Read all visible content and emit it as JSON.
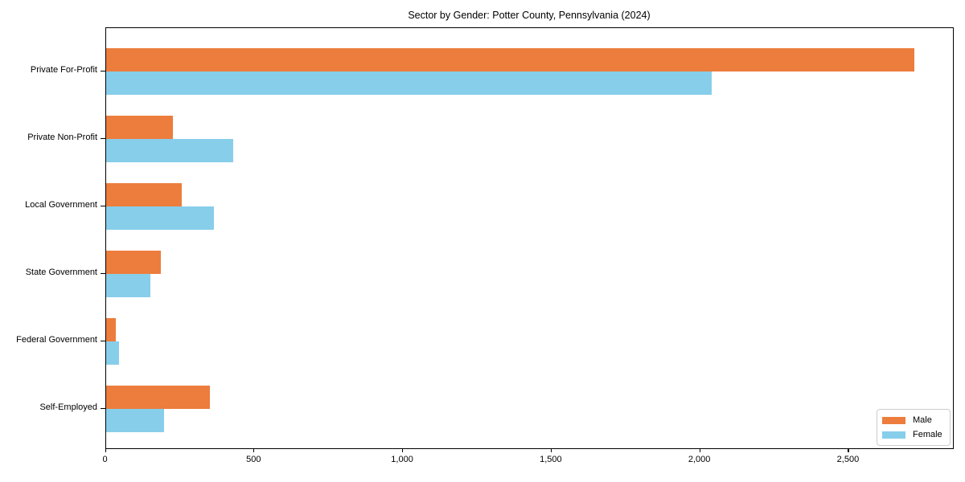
{
  "title": "Sector by Gender: Potter County, Pennsylvania (2024)",
  "legend": {
    "items": [
      {
        "label": "Male",
        "color": "#EC7D3C"
      },
      {
        "label": "Female",
        "color": "#87CEEB"
      }
    ]
  },
  "chart_data": {
    "type": "bar",
    "orientation": "horizontal",
    "title": "Sector by Gender: Potter County, Pennsylvania (2024)",
    "xlabel": "",
    "ylabel": "",
    "categories": [
      "Private For-Profit",
      "Private Non-Profit",
      "Local Government",
      "State Government",
      "Federal Government",
      "Self-Employed"
    ],
    "series": [
      {
        "name": "Male",
        "color": "#EC7D3C",
        "values": [
          2720,
          225,
          255,
          185,
          35,
          350
        ]
      },
      {
        "name": "Female",
        "color": "#87CEEB",
        "values": [
          2040,
          430,
          365,
          150,
          45,
          195
        ]
      }
    ],
    "xlim": [
      0,
      2856
    ],
    "xticks": [
      0,
      500,
      1000,
      1500,
      2000,
      2500
    ],
    "xtick_labels": [
      "0",
      "500",
      "1,000",
      "1,500",
      "2,000",
      "2,500"
    ],
    "grid": false,
    "legend_position": "lower right",
    "spine_color": "#000000"
  }
}
